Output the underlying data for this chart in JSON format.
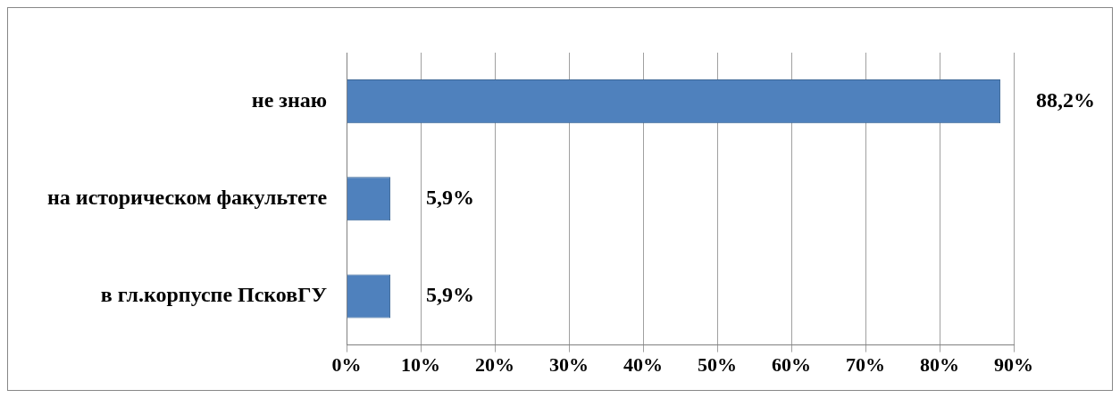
{
  "chart_data": {
    "type": "bar",
    "orientation": "horizontal",
    "categories": [
      "не знаю",
      "на историческом факультете",
      "в гл.корпуспе ПсковГУ"
    ],
    "values": [
      88.2,
      5.9,
      5.9
    ],
    "value_labels": [
      "88,2%",
      "5,9%",
      "5,9%"
    ],
    "color": "#4f81bd",
    "xlim": [
      0,
      90
    ],
    "xticks": [
      {
        "value": 0,
        "label": "0%"
      },
      {
        "value": 10,
        "label": "10%"
      },
      {
        "value": 20,
        "label": "20%"
      },
      {
        "value": 30,
        "label": "30%"
      },
      {
        "value": 40,
        "label": "40%"
      },
      {
        "value": 50,
        "label": "50%"
      },
      {
        "value": 60,
        "label": "60%"
      },
      {
        "value": 70,
        "label": "70%"
      },
      {
        "value": 80,
        "label": "80%"
      },
      {
        "value": 90,
        "label": "90%"
      }
    ],
    "grid": "x",
    "legend": false
  }
}
